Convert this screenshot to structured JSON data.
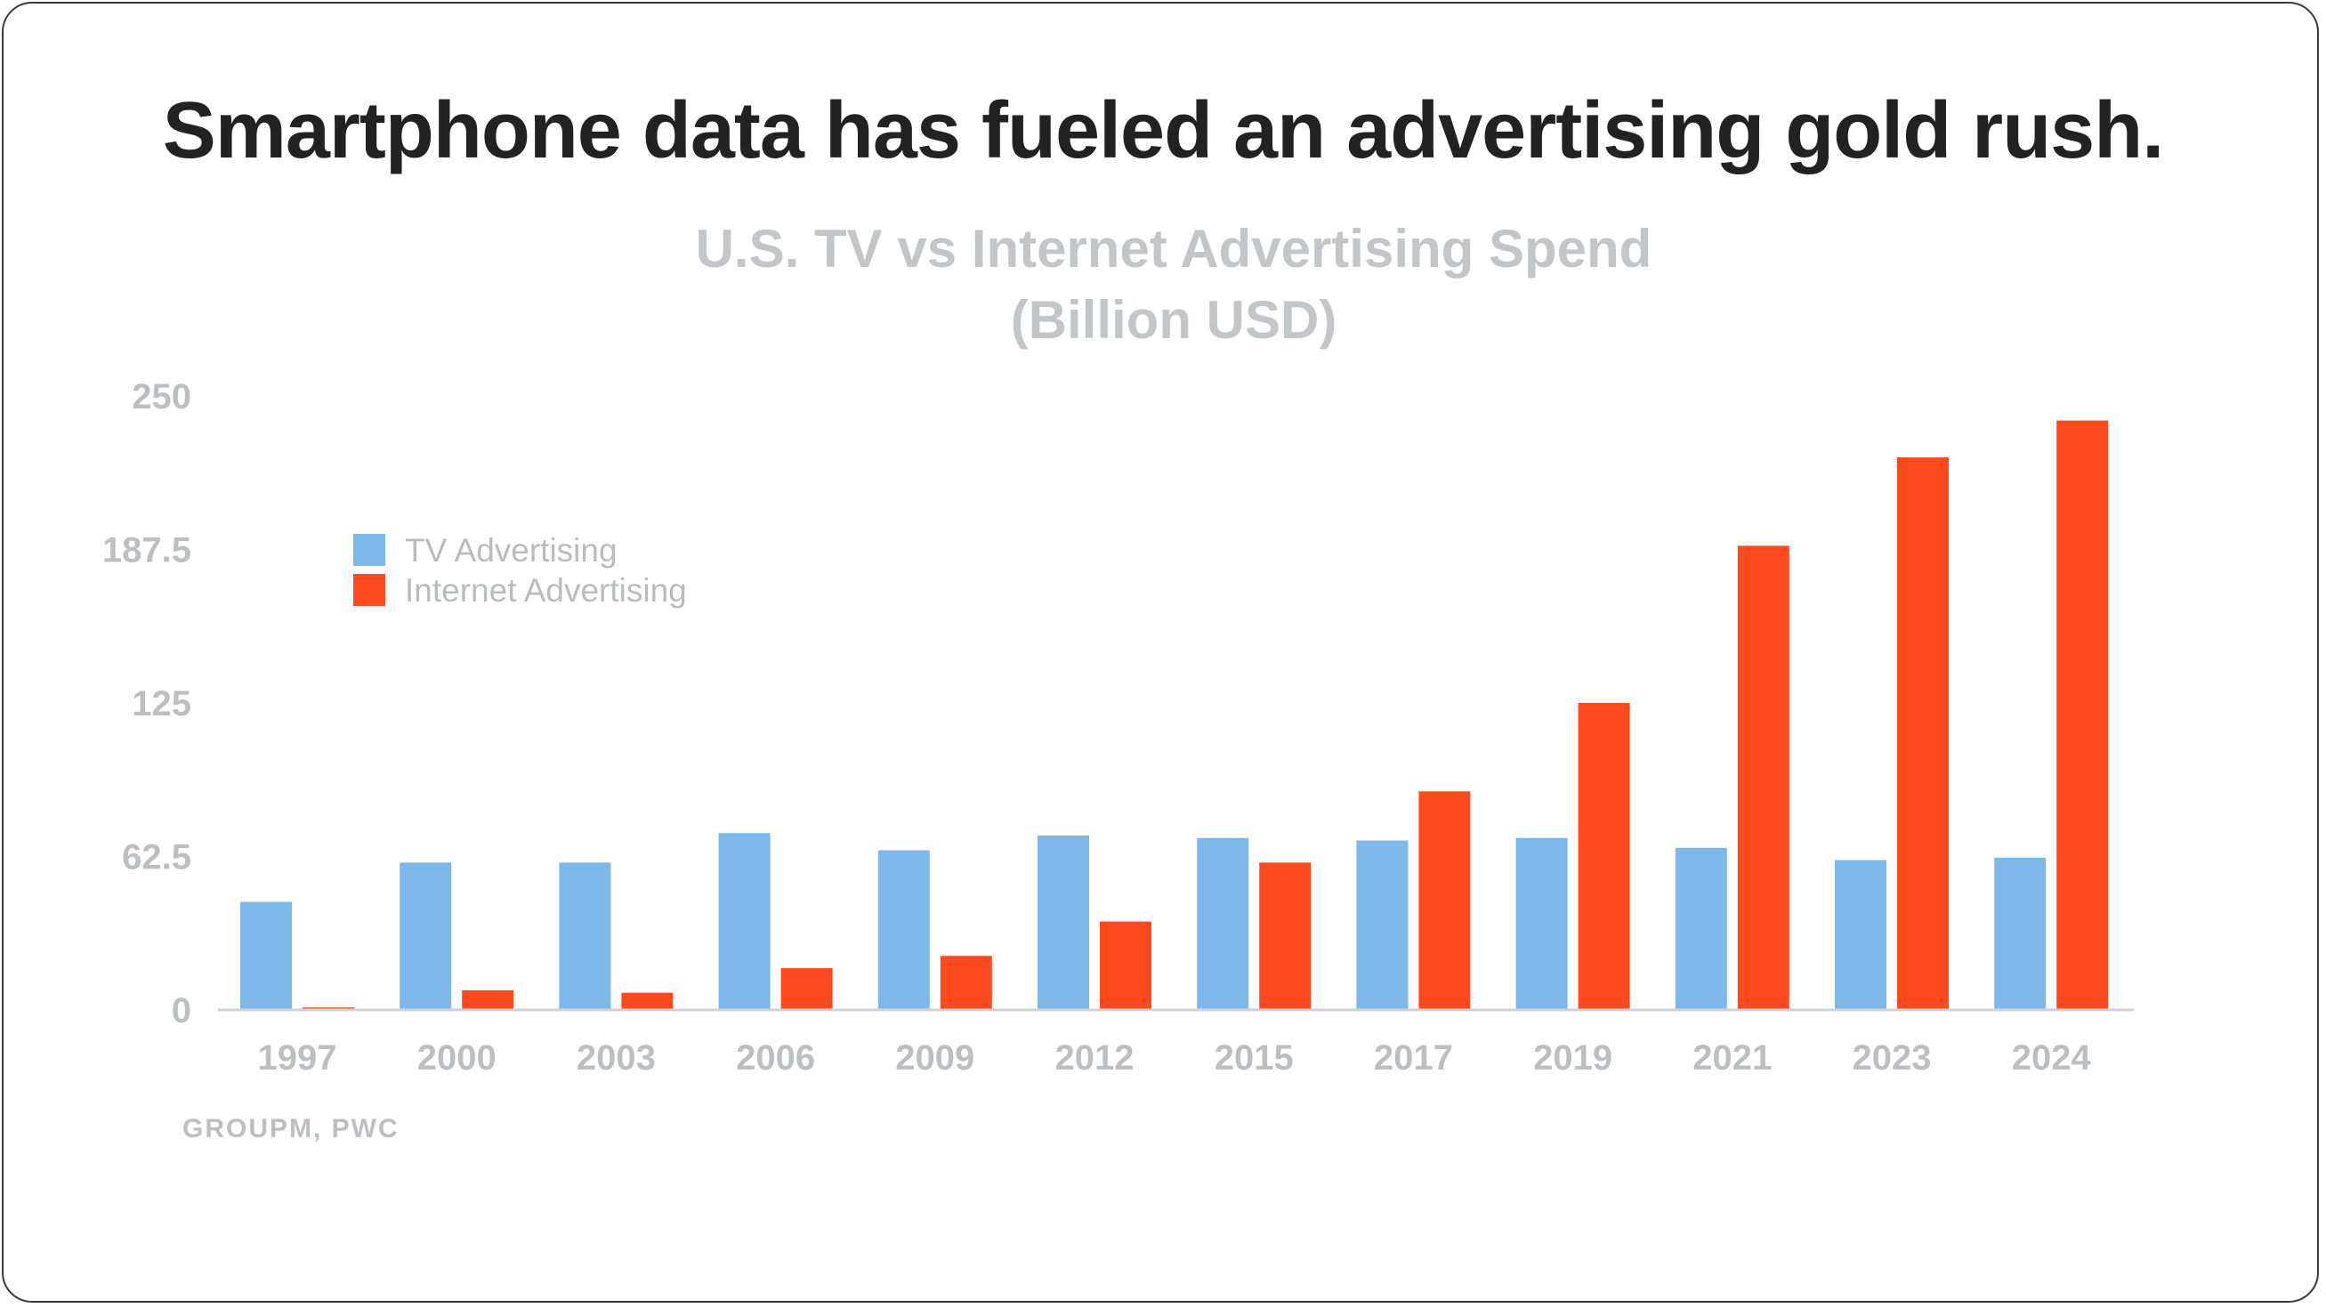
{
  "headline": "Smartphone data has fueled an advertising gold rush.",
  "source": "GROUPM, PWC",
  "colors": {
    "tv": "#7db8ea",
    "internet": "#ff4a1f",
    "axis": "#bcbfc1"
  },
  "chart_data": {
    "type": "bar",
    "title_line1": "U.S. TV vs Internet Advertising Spend",
    "title_line2": "(Billion USD)",
    "categories": [
      "1997",
      "2000",
      "2003",
      "2006",
      "2009",
      "2012",
      "2015",
      "2017",
      "2019",
      "2021",
      "2023",
      "2024"
    ],
    "series": [
      {
        "name": "TV Advertising",
        "values": [
          44,
          60,
          60,
          72,
          65,
          71,
          70,
          69,
          70,
          66,
          61,
          62
        ]
      },
      {
        "name": "Internet Advertising",
        "values": [
          1,
          8,
          7,
          17,
          22,
          36,
          60,
          89,
          125,
          189,
          225,
          240
        ]
      }
    ],
    "yticks": [
      "0",
      "62.5",
      "125",
      "187.5",
      "250"
    ],
    "ylim": [
      0,
      250
    ],
    "grid": false,
    "legend_position": "top-left",
    "xlabel": "",
    "ylabel": ""
  }
}
